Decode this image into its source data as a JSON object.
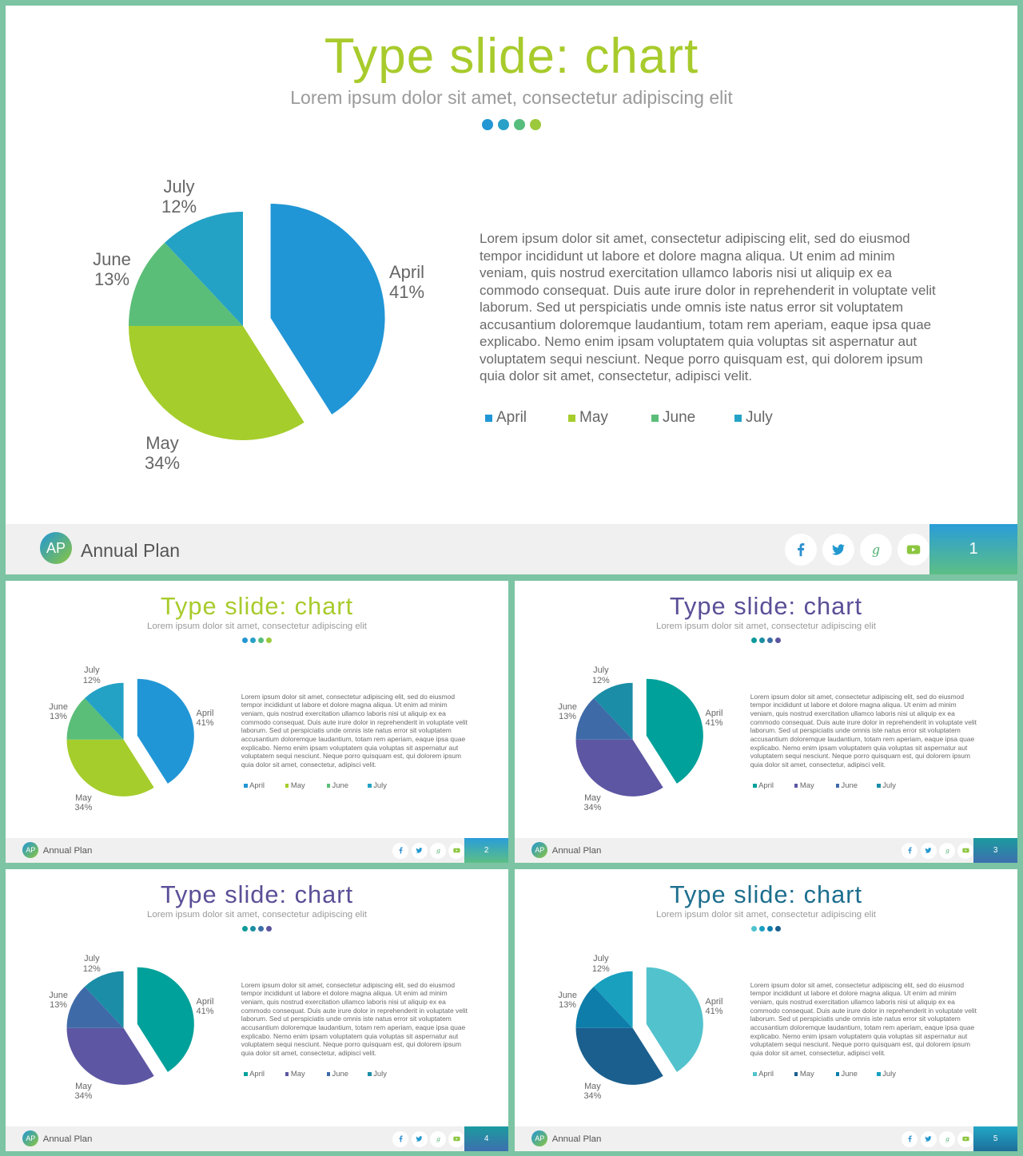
{
  "brand": "Annual Plan",
  "logo_text": "AP",
  "social_icons": [
    "facebook-icon",
    "twitter-icon",
    "google-plus-icon",
    "youtube-icon"
  ],
  "slides": [
    {
      "title": "Type slide: chart",
      "subtitle": "Lorem ipsum dolor sit amet, consectetur adipiscing elit",
      "body": "Lorem ipsum dolor sit amet, consectetur adipiscing elit, sed do eiusmod tempor incididunt ut labore et dolore magna aliqua. Ut enim ad minim veniam, quis nostrud exercitation ullamco laboris nisi ut aliquip ex ea commodo consequat. Duis aute irure dolor in reprehenderit in voluptate velit laborum. Sed ut perspiciatis unde omnis iste natus error sit voluptatem accusantium doloremque laudantium, totam rem aperiam, eaque ipsa quae explicabo. Nemo enim ipsam voluptatem quia voluptas sit aspernatur aut voluptatem sequi nesciunt. Neque porro quisquam est, qui dolorem ipsum quia dolor sit amet, consectetur, adipisci velit.",
      "page": "1",
      "title_color": "#a8cb2c",
      "dot_colors": [
        "#2396d3",
        "#29a0c8",
        "#57bd7d",
        "#9cc93c"
      ],
      "slice_colors": [
        "#2196d6",
        "#a5cd2b",
        "#5bbe78",
        "#24a2c6"
      ],
      "page_gradient": [
        "#2a9dd8",
        "#5cbe85"
      ]
    },
    {
      "title": "Type slide: chart",
      "subtitle": "Lorem ipsum dolor sit amet, consectetur adipiscing elit",
      "body": "Lorem ipsum dolor sit amet, consectetur adipiscing elit, sed do eiusmod tempor incididunt ut labore et dolore magna aliqua. Ut enim ad minim veniam, quis nostrud exercitation ullamco laboris nisi ut aliquip ex ea commodo consequat. Duis aute irure dolor in reprehenderit in voluptate velit laborum. Sed ut perspiciatis unde omnis iste natus error sit voluptatem accusantium doloremque laudantium, totam rem aperiam, eaque ipsa quae explicabo. Nemo enim ipsam voluptatem quia voluptas sit aspernatur aut voluptatem sequi nesciunt. Neque porro quisquam est, qui dolorem ipsum quia dolor sit amet, consectetur, adipisci velit.",
      "page": "2",
      "title_color": "#a8cb2c",
      "dot_colors": [
        "#2396d3",
        "#29a0c8",
        "#57bd7d",
        "#9cc93c"
      ],
      "slice_colors": [
        "#2196d6",
        "#a5cd2b",
        "#5bbe78",
        "#24a2c6"
      ],
      "page_gradient": [
        "#2a9dd8",
        "#5cbe85"
      ]
    },
    {
      "title": "Type slide: chart",
      "subtitle": "Lorem ipsum dolor sit amet, consectetur adipiscing elit",
      "body": "Lorem ipsum dolor sit amet, consectetur adipiscing elit, sed do eiusmod tempor incididunt ut labore et dolore magna aliqua. Ut enim ad minim veniam, quis nostrud exercitation ullamco laboris nisi ut aliquip ex ea commodo consequat. Duis aute irure dolor in reprehenderit in voluptate velit laborum. Sed ut perspiciatis unde omnis iste natus error sit voluptatem accusantium doloremque laudantium, totam rem aperiam, eaque ipsa quae explicabo. Nemo enim ipsam voluptatem quia voluptas sit aspernatur aut voluptatem sequi nesciunt. Neque porro quisquam est, qui dolorem ipsum quia dolor sit amet, consectetur, adipisci velit.",
      "page": "3",
      "title_color": "#5a4f97",
      "dot_colors": [
        "#0e9a9a",
        "#1b8ea3",
        "#3c6fa8",
        "#5b55a0"
      ],
      "slice_colors": [
        "#00a19a",
        "#5d56a3",
        "#3f6aa8",
        "#1b8da6"
      ],
      "page_gradient": [
        "#1b9b9f",
        "#3d6fae"
      ]
    },
    {
      "title": "Type slide: chart",
      "subtitle": "Lorem ipsum dolor sit amet, consectetur adipiscing elit",
      "body": "Lorem ipsum dolor sit amet, consectetur adipiscing elit, sed do eiusmod tempor incididunt ut labore et dolore magna aliqua. Ut enim ad minim veniam, quis nostrud exercitation ullamco laboris nisi ut aliquip ex ea commodo consequat. Duis aute irure dolor in reprehenderit in voluptate velit laborum. Sed ut perspiciatis unde omnis iste natus error sit voluptatem accusantium doloremque laudantium, totam rem aperiam, eaque ipsa quae explicabo. Nemo enim ipsam voluptatem quia voluptas sit aspernatur aut voluptatem sequi nesciunt. Neque porro quisquam est, qui dolorem ipsum quia dolor sit amet, consectetur, adipisci velit.",
      "page": "4",
      "title_color": "#5a4f97",
      "dot_colors": [
        "#0e9a9a",
        "#1b8ea3",
        "#3c6fa8",
        "#5b55a0"
      ],
      "slice_colors": [
        "#00a19a",
        "#5d56a3",
        "#3f6aa8",
        "#1b8da6"
      ],
      "page_gradient": [
        "#1b9b9f",
        "#3d6fae"
      ]
    },
    {
      "title": "Type slide: chart",
      "subtitle": "Lorem ipsum dolor sit amet, consectetur adipiscing elit",
      "body": "Lorem ipsum dolor sit amet, consectetur adipiscing elit, sed do eiusmod tempor incididunt ut labore et dolore magna aliqua. Ut enim ad minim veniam, quis nostrud exercitation ullamco laboris nisi ut aliquip ex ea commodo consequat. Duis aute irure dolor in reprehenderit in voluptate velit laborum. Sed ut perspiciatis unde omnis iste natus error sit voluptatem accusantium doloremque laudantium, totam rem aperiam, eaque ipsa quae explicabo. Nemo enim ipsam voluptatem quia voluptas sit aspernatur aut voluptatem sequi nesciunt. Neque porro quisquam est, qui dolorem ipsum quia dolor sit amet, consectetur, adipisci velit.",
      "page": "5",
      "title_color": "#1d6e8e",
      "dot_colors": [
        "#4fc3cf",
        "#1ba0c2",
        "#0f7fae",
        "#1b5f8d"
      ],
      "slice_colors": [
        "#52c3cc",
        "#1b5f8e",
        "#0e7daa",
        "#19a0bf"
      ],
      "page_gradient": [
        "#22a7c6",
        "#1d6e9a"
      ]
    }
  ],
  "chart_data": {
    "type": "pie",
    "categories": [
      "April",
      "May",
      "June",
      "July"
    ],
    "values": [
      41,
      34,
      13,
      12
    ],
    "labels": [
      "April\n41%",
      "May\n34%",
      "June\n13%",
      "July\n12%"
    ],
    "legend": [
      "April",
      "May",
      "June",
      "July"
    ],
    "exploded": "April"
  }
}
